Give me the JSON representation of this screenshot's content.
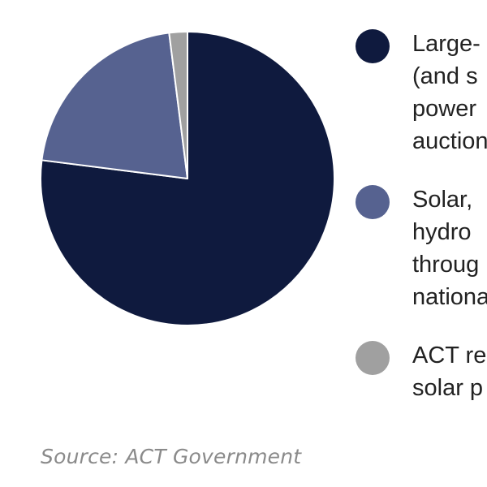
{
  "chart_data": {
    "type": "pie",
    "slices": [
      {
        "label_lines": [
          "Large-",
          "(and s",
          "power",
          "auction"
        ],
        "value": 77,
        "color": "#0f1a3e"
      },
      {
        "label_lines": [
          "Solar,",
          "hydro",
          "throug",
          "nationa"
        ],
        "value": 21,
        "color": "#566290"
      },
      {
        "label_lines": [
          "ACT re",
          "solar p"
        ],
        "value": 2,
        "color": "#a0a0a0"
      }
    ],
    "start_angle_deg": 0,
    "direction": "clockwise",
    "legend_placement": "right"
  },
  "source": "Source: ACT Government"
}
